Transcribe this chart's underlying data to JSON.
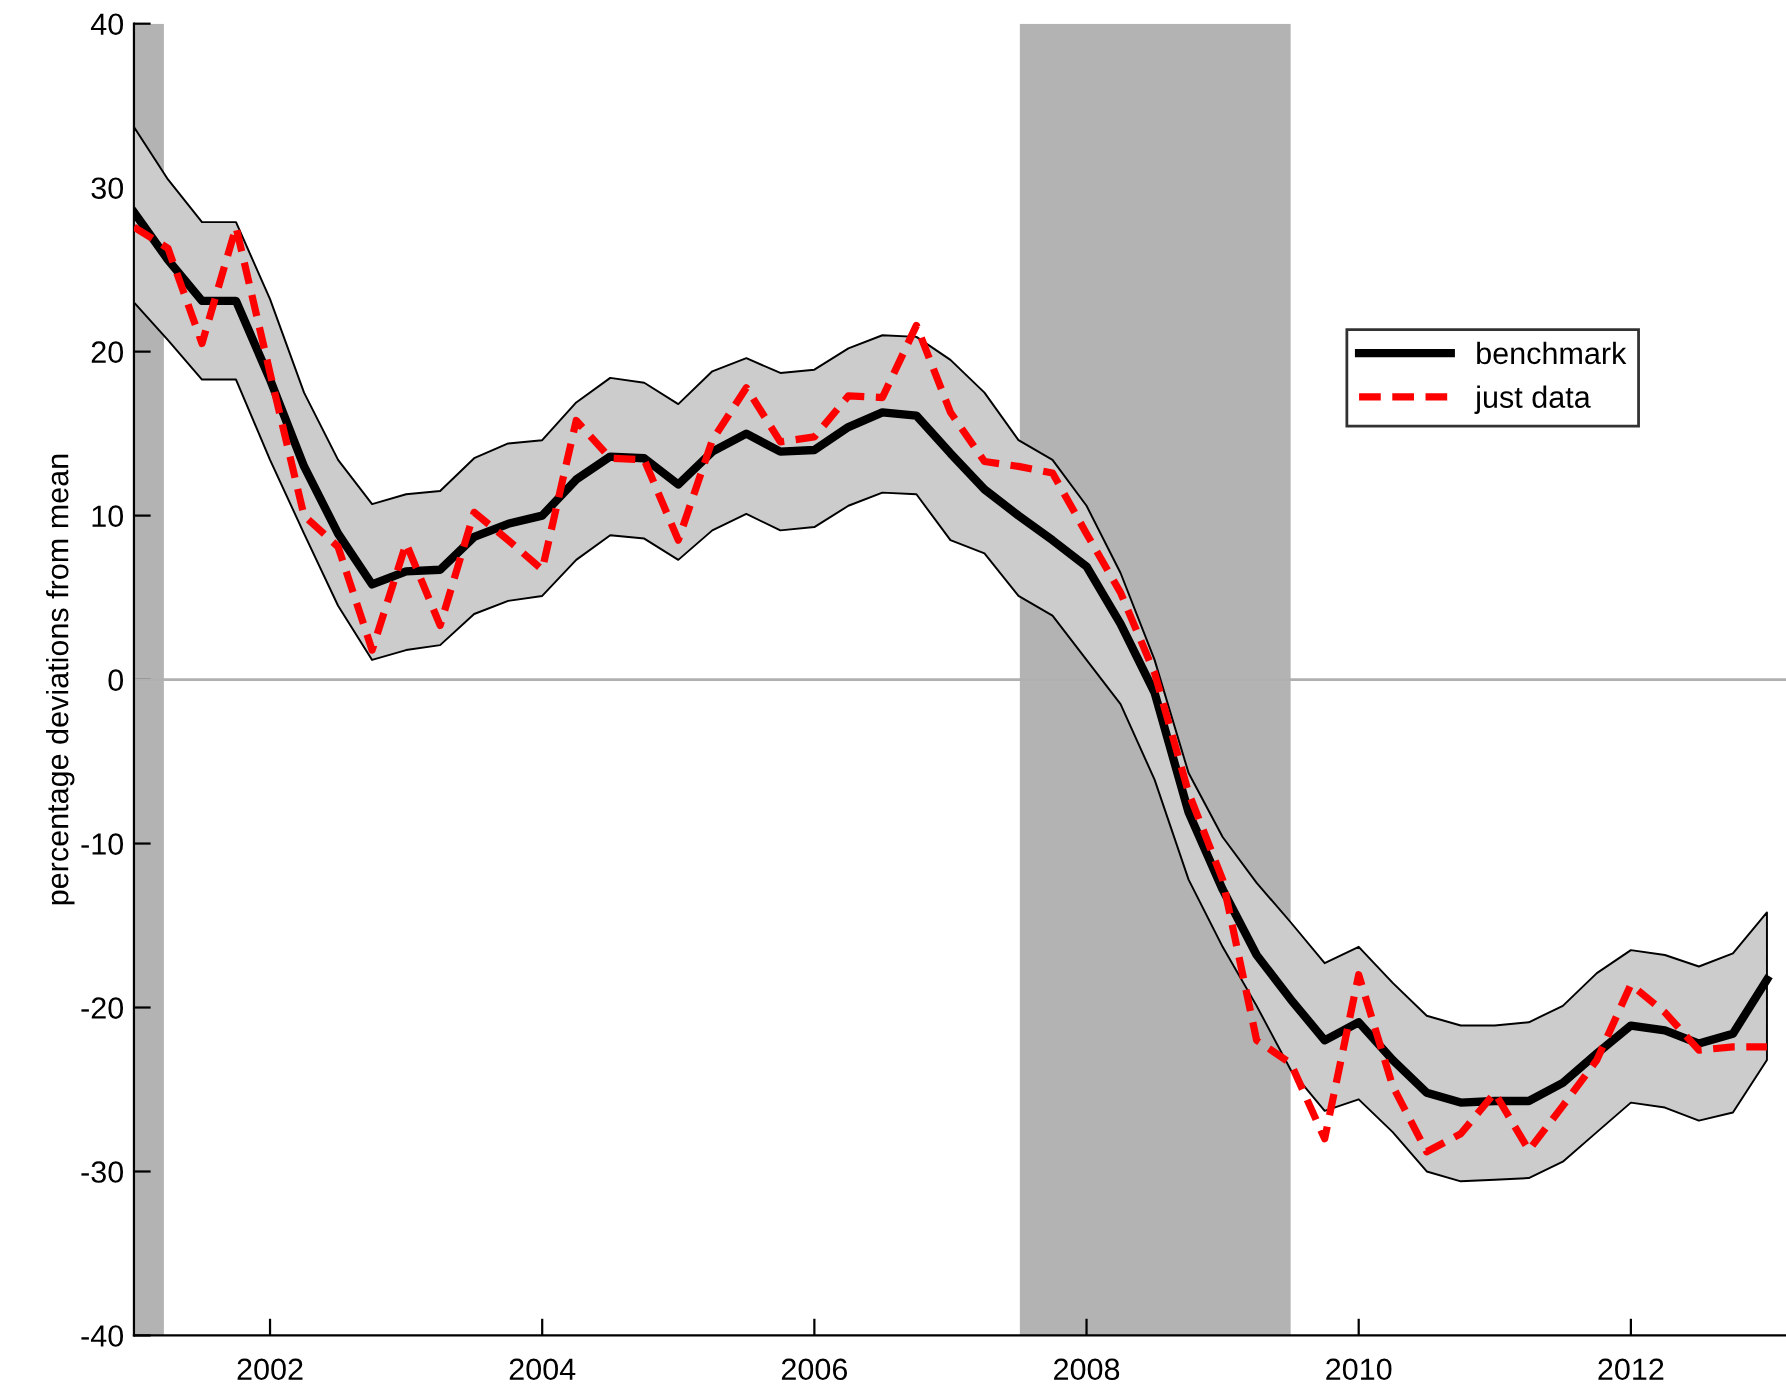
{
  "chart_data": {
    "type": "line",
    "ylabel": "percentage deviations from mean",
    "x": [
      2001.0,
      2001.25,
      2001.5,
      2001.75,
      2002.0,
      2002.25,
      2002.5,
      2002.75,
      2003.0,
      2003.25,
      2003.5,
      2003.75,
      2004.0,
      2004.25,
      2004.5,
      2004.75,
      2005.0,
      2005.25,
      2005.5,
      2005.75,
      2006.0,
      2006.25,
      2006.5,
      2006.75,
      2007.0,
      2007.25,
      2007.5,
      2007.75,
      2008.0,
      2008.25,
      2008.5,
      2008.75,
      2009.0,
      2009.25,
      2009.5,
      2009.75,
      2010.0,
      2010.25,
      2010.5,
      2010.75,
      2011.0,
      2011.25,
      2011.5,
      2011.75,
      2012.0,
      2012.25,
      2012.5,
      2012.75,
      2013.0
    ],
    "series": [
      {
        "name": "benchmark",
        "color": "#000000",
        "line_style": "solid",
        "values": [
          28.5,
          25.6,
          23.1,
          23.1,
          18.3,
          13.0,
          8.9,
          5.8,
          6.6,
          6.7,
          8.7,
          9.5,
          10.0,
          12.2,
          13.6,
          13.5,
          11.9,
          13.9,
          15.0,
          13.9,
          14.0,
          15.4,
          16.3,
          16.1,
          13.8,
          11.6,
          10.0,
          8.5,
          6.9,
          3.4,
          -0.8,
          -8.1,
          -12.8,
          -16.8,
          -19.5,
          -22.0,
          -20.9,
          -23.2,
          -25.2,
          -25.8,
          -25.7,
          -25.7,
          -24.6,
          -22.8,
          -21.1,
          -21.4,
          -22.2,
          -21.6,
          -18.3
        ],
        "upper": [
          33.7,
          30.5,
          27.9,
          27.9,
          23.2,
          17.5,
          13.4,
          10.7,
          11.3,
          11.5,
          13.5,
          14.4,
          14.6,
          16.9,
          18.4,
          18.1,
          16.8,
          18.8,
          19.6,
          18.7,
          18.9,
          20.2,
          21.0,
          20.9,
          19.5,
          17.5,
          14.6,
          13.4,
          10.6,
          6.5,
          1.2,
          -5.7,
          -9.6,
          -12.4,
          -14.8,
          -17.3,
          -16.3,
          -18.5,
          -20.5,
          -21.1,
          -21.1,
          -20.9,
          -19.9,
          -17.9,
          -16.5,
          -16.8,
          -17.5,
          -16.7,
          -14.2
        ],
        "lower": [
          23.0,
          20.7,
          18.3,
          18.3,
          13.4,
          8.9,
          4.5,
          1.2,
          1.8,
          2.1,
          4.0,
          4.8,
          5.1,
          7.3,
          8.8,
          8.6,
          7.3,
          9.1,
          10.1,
          9.1,
          9.3,
          10.6,
          11.4,
          11.3,
          8.5,
          7.7,
          5.1,
          3.9,
          1.2,
          -1.5,
          -6.1,
          -12.2,
          -16.3,
          -19.9,
          -23.8,
          -26.3,
          -25.6,
          -27.6,
          -30.0,
          -30.6,
          -30.5,
          -30.4,
          -29.4,
          -27.6,
          -25.8,
          -26.1,
          -26.9,
          -26.4,
          -23.2
        ]
      },
      {
        "name": "just data",
        "color": "#ff0000",
        "line_style": "dashed",
        "values": [
          27.6,
          26.3,
          20.5,
          27.6,
          18.7,
          10.0,
          8.1,
          1.8,
          8.3,
          3.3,
          10.2,
          8.5,
          6.7,
          15.8,
          13.5,
          13.4,
          8.5,
          14.6,
          17.8,
          14.5,
          14.8,
          17.3,
          17.2,
          21.6,
          16.3,
          13.3,
          13.0,
          12.6,
          8.9,
          5.3,
          0.4,
          -6.9,
          -12.2,
          -22.0,
          -23.4,
          -28.0,
          -18.0,
          -24.8,
          -28.8,
          -27.7,
          -25.2,
          -28.7,
          -26.0,
          -23.2,
          -18.6,
          -20.3,
          -22.6,
          -22.4,
          -22.4
        ]
      }
    ],
    "xlim": [
      2001.0,
      2013.14
    ],
    "xticks": [
      2002,
      2004,
      2006,
      2008,
      2010,
      2012
    ],
    "ylim": [
      -40,
      40
    ],
    "yticks": [
      -40,
      -30,
      -20,
      -10,
      0,
      10,
      20,
      30,
      40
    ],
    "bands": [
      {
        "axis": "x",
        "from": 2001.0,
        "to": 2001.22,
        "color": "#b3b3b3"
      },
      {
        "axis": "x",
        "from": 2007.51,
        "to": 2009.5,
        "color": "#b3b3b3"
      }
    ],
    "ref_lines": [
      {
        "axis": "y",
        "value": 0,
        "color": "#b0b0b0",
        "line_style": "solid"
      }
    ],
    "legend": "right",
    "grid": false,
    "marker": "none"
  }
}
